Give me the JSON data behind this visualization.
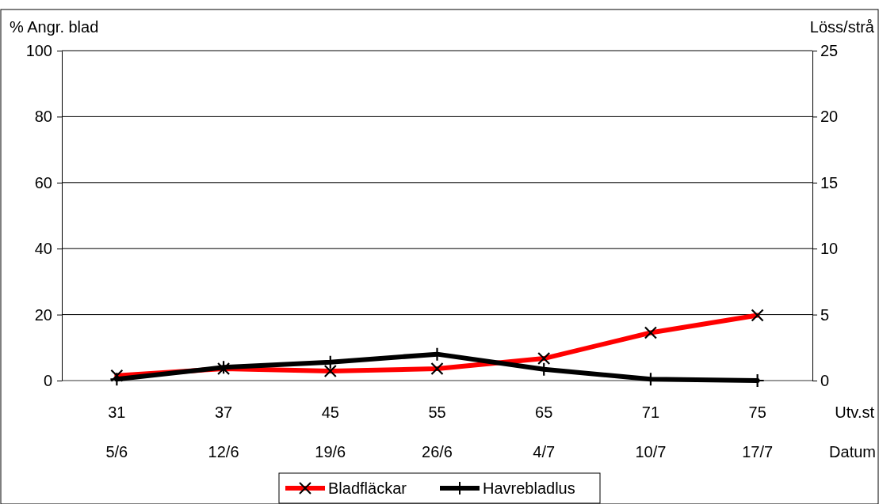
{
  "chart_data": {
    "type": "line",
    "ylabel": "% Angr. blad",
    "y2label": "Löss/strå",
    "xlabel": "Utv.st\nDatum",
    "categories": [
      "31\n5/6",
      "37\n12/6",
      "45\n19/6",
      "55\n26/6",
      "65\n4/7",
      "71\n10/7",
      "75\n17/7"
    ],
    "series": [
      {
        "name": "Bladfläckar",
        "color": "#ff0000",
        "marker": "cross",
        "values": [
          1.5,
          3.6,
          2.9,
          3.6,
          6.7,
          14.5,
          19.8
        ]
      },
      {
        "name": "Havrebladlus",
        "color": "#000000",
        "marker": "plus",
        "axis": "y2",
        "values": [
          0.1,
          1.0,
          1.4,
          2.0,
          0.85,
          0.1,
          0
        ]
      }
    ],
    "ylim": [
      0,
      100
    ],
    "yticks": [
      0,
      20,
      40,
      60,
      80,
      100
    ],
    "y2lim": [
      0,
      25
    ],
    "y2ticks": [
      0,
      5,
      10,
      15,
      20,
      25
    ],
    "grid": "y",
    "legend": "bottom"
  }
}
